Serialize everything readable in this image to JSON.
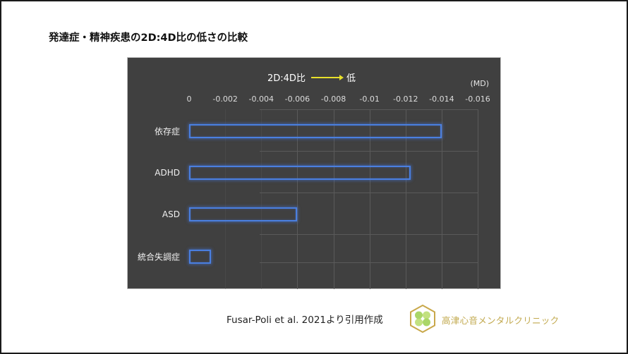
{
  "title": "発達症・精神疾患の2D:4D比の低さの比較",
  "chart": {
    "direction_label": "2D:4D比",
    "direction_target": "低",
    "unit": "(MD)",
    "colors": {
      "background": "#404040",
      "bar_outline": "#4a7fe0",
      "arrow": "#e8e02a"
    }
  },
  "chart_data": {
    "type": "bar",
    "orientation": "horizontal",
    "title": "発達症・精神疾患の2D:4D比の低さの比較",
    "xlabel": "(MD)",
    "ylabel": "",
    "annotation": "2D:4D比 → 低",
    "categories": [
      "依存症",
      "ADHD",
      "ASD",
      "統合失調症"
    ],
    "values": [
      -0.014,
      -0.0123,
      -0.006,
      -0.0012
    ],
    "xlim": [
      0,
      -0.016
    ],
    "xticks": [
      "0",
      "-0.002",
      "-0.004",
      "-0.006",
      "-0.008",
      "-0.01",
      "-0.012",
      "-0.014",
      "-0.016"
    ],
    "grid": true,
    "legend": null
  },
  "footer": {
    "citation": "Fusar-Poli et al. 2021より引用作成",
    "clinic_name": "高津心音メンタルクリニック",
    "logo_icon": "clover-hexagon-logo"
  }
}
